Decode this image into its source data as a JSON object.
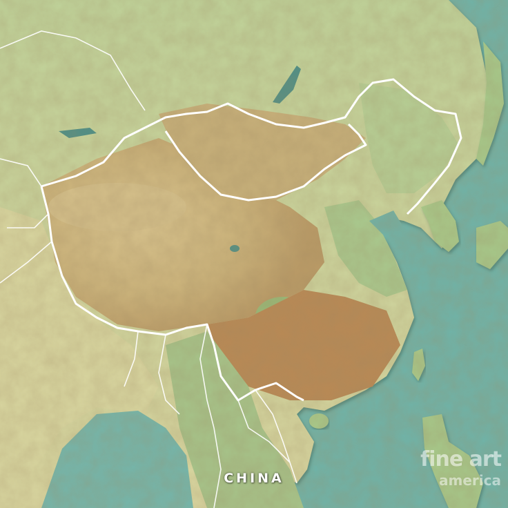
{
  "map": {
    "country_label": "CHINA",
    "highlighted_country": "China",
    "style": "3D relief topographic map",
    "colors": {
      "sea": "#6fb3a8",
      "deep_sea": "#5aa399",
      "lowland": "#a9c98e",
      "plain": "#d6d9a2",
      "plateau": "#d8c792",
      "mountain": "#b4824c",
      "highland_dark": "#9a6a3c",
      "border": "#ffffff"
    }
  },
  "watermark": {
    "line1": "fine art",
    "line2": "america"
  }
}
